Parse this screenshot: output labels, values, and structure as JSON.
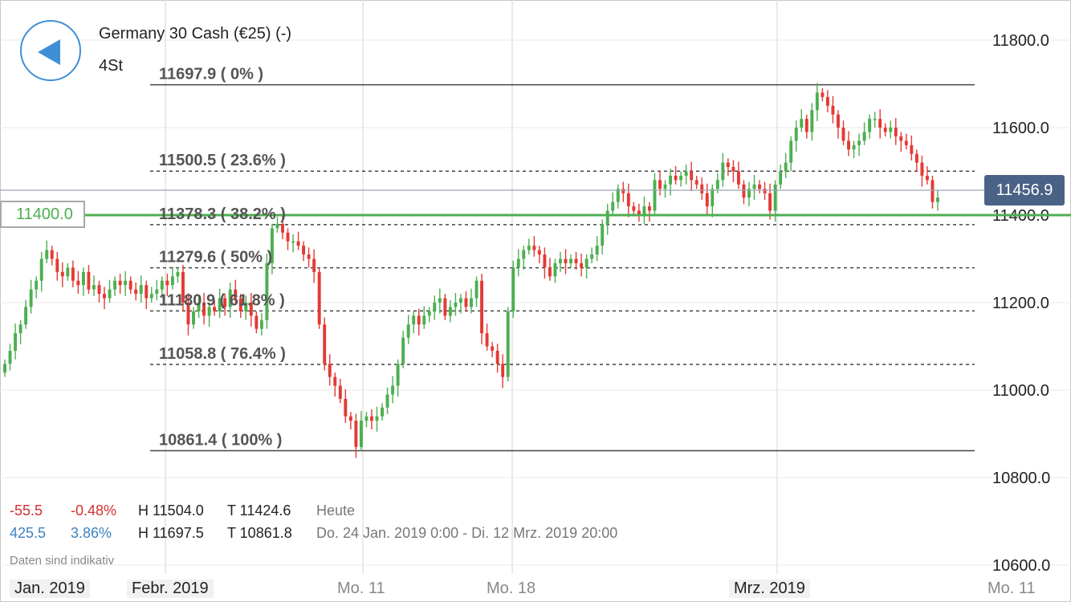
{
  "header": {
    "title": "Germany 30 Cash (€25) (-)",
    "timeframe": "4St"
  },
  "current_price": "11456.9",
  "level_label": "11400.0",
  "colors": {
    "up": "#4caf50",
    "down": "#e53935",
    "level": "#4caf50",
    "badge": "#4a6285",
    "accent": "#3e8fd6"
  },
  "stats": {
    "today": {
      "change": "-55.5",
      "change_pct": "-0.48%",
      "high": "H 11504.0",
      "low": "T 11424.6",
      "label": "Heute"
    },
    "range": {
      "change": "425.5",
      "change_pct": "3.86%",
      "high": "H 11697.5",
      "low": "T 10861.8",
      "label": "Do. 24 Jan. 2019 0:00 - Di. 12 Mrz. 2019 20:00"
    },
    "disclaimer": "Daten sind indikativ"
  },
  "x_axis": {
    "labels": [
      {
        "text": "Jan. 2019",
        "major": true
      },
      {
        "text": "Febr. 2019",
        "major": true
      },
      {
        "text": "Mo. 11",
        "major": false
      },
      {
        "text": "Mo. 18",
        "major": false
      },
      {
        "text": "Mrz. 2019",
        "major": true
      },
      {
        "text": "Mo. 11",
        "major": false
      }
    ]
  },
  "chart_data": {
    "type": "candlestick",
    "title": "Germany 30 Cash (€25) (-)",
    "interval": "4St",
    "y_ticks": [
      "11800.0",
      "11600.0",
      "11400.0",
      "11200.0",
      "11000.0",
      "10800.0",
      "10600.0"
    ],
    "y_tick_values": [
      11800,
      11600,
      11400,
      11200,
      11000,
      10800,
      10600
    ],
    "ylim": [
      10560,
      11880
    ],
    "current_price": 11456.9,
    "horizontal_level": 11400.0,
    "fibonacci": {
      "high": 11697.9,
      "low": 10861.4,
      "levels": [
        {
          "label": "11697.9 ( 0% )",
          "value": 11697.9
        },
        {
          "label": "11500.5 ( 23.6% )",
          "value": 11500.5
        },
        {
          "label": "11378.3 ( 38.2% )",
          "value": 11378.3
        },
        {
          "label": "11279.6 ( 50% )",
          "value": 11279.6
        },
        {
          "label": "11180.9 ( 61.8% )",
          "value": 11180.9
        },
        {
          "label": "11058.8 ( 76.4% )",
          "value": 11058.8
        },
        {
          "label": "10861.4 ( 100% )",
          "value": 10861.4
        }
      ]
    },
    "candles_close": [
      11060,
      11090,
      11130,
      11150,
      11190,
      11230,
      11250,
      11300,
      11320,
      11300,
      11270,
      11260,
      11280,
      11250,
      11240,
      11270,
      11230,
      11240,
      11220,
      11210,
      11230,
      11250,
      11240,
      11250,
      11230,
      11220,
      11240,
      11210,
      11220,
      11230,
      11250,
      11240,
      11260,
      11270,
      11200,
      11150,
      11180,
      11200,
      11170,
      11190,
      11180,
      11210,
      11190,
      11230,
      11210,
      11180,
      11200,
      11170,
      11140,
      11160,
      11290,
      11370,
      11380,
      11360,
      11340,
      11340,
      11330,
      11310,
      11300,
      11270,
      11150,
      11060,
      11030,
      11010,
      10980,
      10940,
      10930,
      10870,
      10930,
      10940,
      10930,
      10940,
      10960,
      10990,
      11010,
      11060,
      11120,
      11150,
      11170,
      11150,
      11170,
      11180,
      11200,
      11210,
      11170,
      11190,
      11200,
      11210,
      11190,
      11210,
      11250,
      11130,
      11100,
      11090,
      11060,
      11030,
      11180,
      11280,
      11300,
      11320,
      11330,
      11320,
      11310,
      11280,
      11260,
      11290,
      11300,
      11290,
      11300,
      11290,
      11280,
      11300,
      11310,
      11330,
      11380,
      11410,
      11430,
      11460,
      11450,
      11420,
      11410,
      11400,
      11420,
      11410,
      11480,
      11460,
      11470,
      11490,
      11480,
      11490,
      11500,
      11480,
      11470,
      11450,
      11420,
      11460,
      11480,
      11520,
      11510,
      11500,
      11470,
      11440,
      11460,
      11470,
      11460,
      11450,
      11410,
      11470,
      11500,
      11520,
      11570,
      11600,
      11620,
      11590,
      11640,
      11680,
      11670,
      11650,
      11630,
      11600,
      11570,
      11550,
      11560,
      11570,
      11590,
      11620,
      11620,
      11600,
      11590,
      11600,
      11580,
      11570,
      11560,
      11540,
      11520,
      11490,
      11480,
      11430,
      11440
    ]
  }
}
